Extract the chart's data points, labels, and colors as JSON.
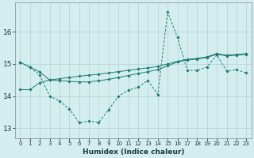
{
  "xlabel": "Humidex (Indice chaleur)",
  "background_color": "#d4eef0",
  "grid_color": "#b0d0d4",
  "line_color": "#1a7a6e",
  "xlim": [
    -0.5,
    23.5
  ],
  "ylim": [
    12.7,
    16.9
  ],
  "yticks": [
    13,
    14,
    15,
    16
  ],
  "xticks": [
    0,
    1,
    2,
    3,
    4,
    5,
    6,
    7,
    8,
    9,
    10,
    11,
    12,
    13,
    14,
    15,
    16,
    17,
    18,
    19,
    20,
    21,
    22,
    23
  ],
  "series": {
    "line1_solid_upper": [
      15.05,
      14.9,
      14.75,
      14.5,
      14.48,
      14.46,
      14.44,
      14.44,
      14.48,
      14.52,
      14.58,
      14.64,
      14.7,
      14.76,
      14.82,
      14.94,
      15.06,
      15.12,
      15.15,
      15.2,
      15.3,
      15.25,
      15.27,
      15.3
    ],
    "line2_solid_lower": [
      14.2,
      14.2,
      14.42,
      14.5,
      14.54,
      14.58,
      14.62,
      14.65,
      14.68,
      14.72,
      14.76,
      14.8,
      14.84,
      14.88,
      14.92,
      15.0,
      15.08,
      15.14,
      15.17,
      15.22,
      15.32,
      15.27,
      15.29,
      15.32
    ],
    "line3_dashed": [
      15.05,
      14.9,
      14.65,
      14.0,
      13.85,
      13.6,
      13.18,
      13.22,
      13.18,
      13.58,
      14.0,
      14.18,
      14.28,
      14.48,
      14.05,
      16.62,
      15.82,
      14.8,
      14.8,
      14.9,
      15.28,
      14.78,
      14.82,
      14.72
    ]
  }
}
